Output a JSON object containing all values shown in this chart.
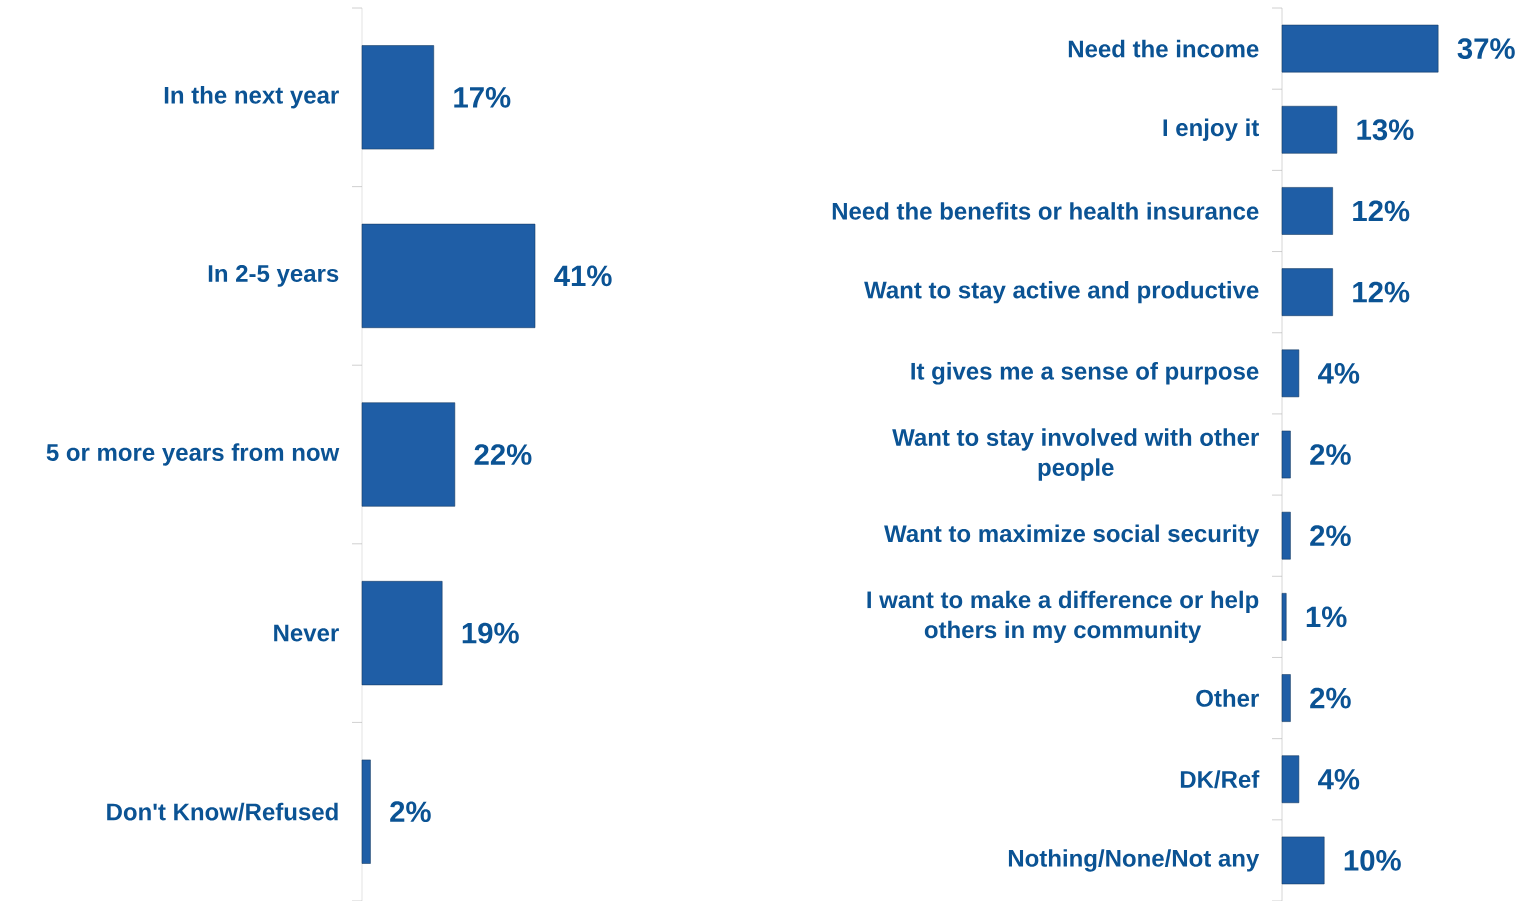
{
  "chart_data": [
    {
      "type": "bar",
      "orientation": "horizontal",
      "color": "#1f5ea6",
      "categories": [
        "In the next year",
        "In 2-5 years",
        "5 or more years from now",
        "Never",
        "Don't Know/Refused"
      ],
      "values": [
        17,
        41,
        22,
        19,
        2
      ],
      "value_labels": [
        "17%",
        "41%",
        "22%",
        "19%",
        "2%"
      ]
    },
    {
      "type": "bar",
      "orientation": "horizontal",
      "color": "#1f5ea6",
      "categories": [
        "Need the income",
        "I enjoy it",
        "Need the benefits or health insurance",
        "Want to stay active and productive",
        "It gives me a sense of purpose",
        "Want to stay involved with other people",
        "Want to maximize social security",
        "I want to make a difference or help others in my community",
        "Other",
        "DK/Ref",
        "Nothing/None/Not any"
      ],
      "values": [
        37,
        13,
        12,
        12,
        4,
        2,
        2,
        1,
        2,
        4,
        10
      ],
      "value_labels": [
        "37%",
        "13%",
        "12%",
        "12%",
        "4%",
        "2%",
        "2%",
        "1%",
        "2%",
        "4%",
        "10%"
      ]
    }
  ]
}
